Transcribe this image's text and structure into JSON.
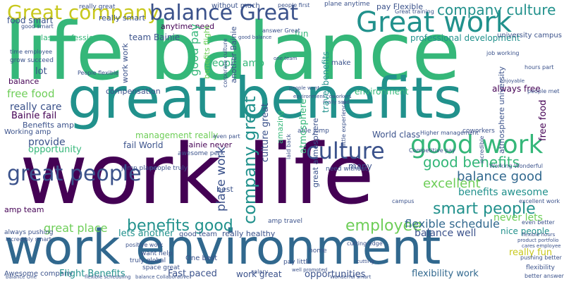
{
  "palette": {
    "purple": "#440154",
    "indigo": "#3b528b",
    "blue": "#31688e",
    "teal": "#21918c",
    "green": "#35b779",
    "lime": "#6ece58",
    "yellow": "#c8c81e"
  },
  "words": {
    "life_balance": "life balance",
    "great_benefits": "great benefits",
    "work_life": "work life",
    "work_environment": "work environment",
    "great_people": "great people",
    "great_work": "Great work",
    "good_work": "good work",
    "culture": "culture",
    "great_company": "Great company",
    "balance_great": "balance Great",
    "company_great": "company great",
    "company_culture": "company culture",
    "good_benefits": "good benefits",
    "balance_good": "balance good",
    "benefits_awesome": "benefits awesome",
    "excellent": "excellent",
    "smart_people": "smart people",
    "never_lets": "never lets",
    "flexible_schedule": "flexible schedule",
    "balance_well": "balance well",
    "nice_people": "nice people",
    "really_fun": "really fun",
    "benefits_good": "benefits good",
    "great_place": "great place",
    "lets_another": "lets another",
    "really_healthy": "really healthy",
    "employee": "employee",
    "place_work": "place work",
    "culture_great": "culture great",
    "provide": "provide",
    "opportunity": "opportunity",
    "free_food_left": "free food",
    "really_care": "really care",
    "bainie_fail": "Bainie fail",
    "benefits_amp": "Benefits amp",
    "compensation": "compensation",
    "management_really": "management really",
    "fail_world": "fail World",
    "bainie_never": "Bainie never",
    "awesome_perk": "awesome perk",
    "world_class": "World class",
    "always_free": "always free",
    "environment": "environment",
    "team_bainie": "team Bainie",
    "good_pay": "good pay",
    "people_amp": "people amp",
    "another_bainie": "another Bainie",
    "anytime_need": "anytime need",
    "food_smart": "food smart",
    "lot": "lot",
    "class_professional": "class professional",
    "balance_left": "balance",
    "free_food_right": "free food",
    "professional_development": "professional development",
    "university_campus": "university campus",
    "fun": "fun",
    "pay_flexible": "pay Flexible",
    "work_great": "work great",
    "opportunities": "opportunities",
    "flexibility_work": "flexibility work",
    "awesome_company": "Awesome company",
    "flight_benefits": "Flight Benefits",
    "fast_paced": "Fast paced",
    "one_best": "One best",
    "working_amp": "Working amp",
    "amp_team": "amp team",
    "always_pushing": "always pushing",
    "really_smart": "really smart",
    "without_much": "without much",
    "make": "make",
    "many": "many",
    "best": "best",
    "travel_benefits": "travel benefits",
    "atmosphere": "atmosphere",
    "atmosphere_university": "atmosphere university",
    "benefits_flight": "benefits flight",
    "great_atmosphere": "great atmosphere",
    "work_work": "work work",
    "flexibility": "flexibility",
    "pushing_better": "pushing better",
    "better_answer": "better answer",
    "want_help": "want help",
    "positive_work": "positive work",
    "truly_global": "truly global",
    "space_great": "space great",
    "jump_plane": "jump plane",
    "people_truly": "people truly",
    "need_without": "need without",
    "amp_travel": "amp travel",
    "really_great": "really great",
    "plane_anytime": "plane anytime",
    "people_first": "people first",
    "good_team": "good team",
    "coworkers": "coworkers",
    "even_part": "even part",
    "able_jump": "able jump",
    "salary": "salary",
    "pay_little": "pay little",
    "cutting_edge": "cutting edge",
    "home": "home",
    "grow_succeed": "grow succeed",
    "time_employee": "time employee",
    "people_flexible": "People flexible",
    "hours_part": "hours part",
    "people_met": "people met",
    "job_working": "job working",
    "great_training": "Great training",
    "excellent_work": "excellent work",
    "even_better": "even better",
    "product_portfolio": "product portfolio",
    "cares_employee": "cares employee",
    "flexible_hours": "flexible hours",
    "incredibly_smart": "incredibly smart",
    "balance_one": "balance One",
    "flexible_scheduling": "flexible scheduling",
    "balance_collaborative": "balance Collaborative",
    "well_promoted": "well promoted",
    "wonderful_smart": "Wonderful smart",
    "working_wonderful": "Working Wonderful",
    "competitive_pay": "Competitive pay",
    "higher_management": "Higher management",
    "benefits_including": "benefits including",
    "environment_coworkers": "environment coworkers",
    "really_solid": "really solid",
    "people_want": "people want",
    "one_team": "one team",
    "good_balance": "good balance",
    "answer_great": "answer Great",
    "corporate_culture": "corporate culture",
    "laid_back": "laid back",
    "little_experience": "little experience",
    "incredible": "incredible",
    "amazing": "amazing",
    "campus": "campus",
    "enjoyable": "enjoyable",
    "cutting": "cutting",
    "good_smart": "good smart"
  }
}
